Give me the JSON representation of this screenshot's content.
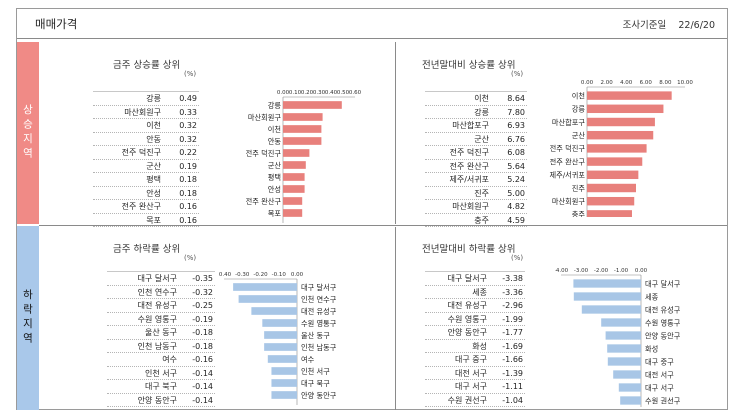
{
  "header": {
    "title": "매매가격",
    "date_label": "조사기준일",
    "date_value": "22/6/20"
  },
  "side": {
    "rise": "상승지역",
    "fall": "하락지역"
  },
  "panels": {
    "tl": {
      "title": "금주 상승률 상위",
      "unit": "(%)",
      "rows": [
        {
          "name": "강릉",
          "value": "0.49"
        },
        {
          "name": "마산회원구",
          "value": "0.33"
        },
        {
          "name": "이천",
          "value": "0.32"
        },
        {
          "name": "안동",
          "value": "0.32"
        },
        {
          "name": "전주 덕진구",
          "value": "0.22"
        },
        {
          "name": "군산",
          "value": "0.19"
        },
        {
          "name": "평택",
          "value": "0.18"
        },
        {
          "name": "안성",
          "value": "0.18"
        },
        {
          "name": "전주 완산구",
          "value": "0.16"
        },
        {
          "name": "목포",
          "value": "0.16"
        }
      ]
    },
    "tr": {
      "title": "전년말대비 상승률 상위",
      "unit": "(%)",
      "rows": [
        {
          "name": "이천",
          "value": "8.64"
        },
        {
          "name": "강릉",
          "value": "7.80"
        },
        {
          "name": "마산합포구",
          "value": "6.93"
        },
        {
          "name": "군산",
          "value": "6.76"
        },
        {
          "name": "전주 덕진구",
          "value": "6.08"
        },
        {
          "name": "전주 완산구",
          "value": "5.64"
        },
        {
          "name": "제주/서귀포",
          "value": "5.24"
        },
        {
          "name": "진주",
          "value": "5.00"
        },
        {
          "name": "마산회원구",
          "value": "4.82"
        },
        {
          "name": "충주",
          "value": "4.59"
        }
      ]
    },
    "bl": {
      "title": "금주 하락률 상위",
      "unit": "(%)",
      "rows": [
        {
          "name": "대구 달서구",
          "value": "-0.35"
        },
        {
          "name": "인천 연수구",
          "value": "-0.32"
        },
        {
          "name": "대전 유성구",
          "value": "-0.25"
        },
        {
          "name": "수원 영통구",
          "value": "-0.19"
        },
        {
          "name": "울산 동구",
          "value": "-0.18"
        },
        {
          "name": "인천 남동구",
          "value": "-0.18"
        },
        {
          "name": "여수",
          "value": "-0.16"
        },
        {
          "name": "인천 서구",
          "value": "-0.14"
        },
        {
          "name": "대구 북구",
          "value": "-0.14"
        },
        {
          "name": "안양 동안구",
          "value": "-0.14"
        }
      ]
    },
    "br": {
      "title": "전년말대비 하락률 상위",
      "unit": "(%)",
      "rows": [
        {
          "name": "대구 달서구",
          "value": "-3.38"
        },
        {
          "name": "세종",
          "value": "-3.36"
        },
        {
          "name": "대전 유성구",
          "value": "-2.96"
        },
        {
          "name": "수원 영통구",
          "value": "-1.99"
        },
        {
          "name": "안양 동안구",
          "value": "-1.77"
        },
        {
          "name": "화성",
          "value": "-1.69"
        },
        {
          "name": "대구 중구",
          "value": "-1.66"
        },
        {
          "name": "대전 서구",
          "value": "-1.39"
        },
        {
          "name": "대구 서구",
          "value": "-1.11"
        },
        {
          "name": "수원 권선구",
          "value": "-1.04"
        }
      ]
    }
  },
  "chart_data": [
    {
      "type": "bar",
      "orientation": "horizontal",
      "categories": [
        "강릉",
        "마산회원구",
        "이천",
        "안동",
        "전주 덕진구",
        "군산",
        "평택",
        "안성",
        "전주 완산구",
        "목포"
      ],
      "values": [
        0.49,
        0.33,
        0.32,
        0.32,
        0.22,
        0.19,
        0.18,
        0.18,
        0.16,
        0.16
      ],
      "xlim": [
        0,
        0.6
      ],
      "ticks": [
        "0.00",
        "0.10",
        "0.20",
        "0.30",
        "0.40",
        "0.50",
        "0.60"
      ],
      "bar_color": "#e8807c"
    },
    {
      "type": "bar",
      "orientation": "horizontal",
      "categories": [
        "이천",
        "강릉",
        "마산합포구",
        "군산",
        "전주 덕진구",
        "전주 완산구",
        "제주/서귀포",
        "진주",
        "마산회원구",
        "충주"
      ],
      "values": [
        8.64,
        7.8,
        6.93,
        6.76,
        6.08,
        5.64,
        5.24,
        5.0,
        4.82,
        4.59
      ],
      "xlim": [
        0,
        10
      ],
      "ticks": [
        "0.00",
        "2.00",
        "4.00",
        "6.00",
        "8.00",
        "10.00"
      ],
      "bar_color": "#e8807c"
    },
    {
      "type": "bar",
      "orientation": "horizontal",
      "categories": [
        "대구 달서구",
        "인천 연수구",
        "대전 유성구",
        "수원 영통구",
        "울산 동구",
        "인천 남동구",
        "여수",
        "인천 서구",
        "대구 북구",
        "안양 동안구"
      ],
      "values": [
        -0.35,
        -0.32,
        -0.25,
        -0.19,
        -0.18,
        -0.18,
        -0.16,
        -0.14,
        -0.14,
        -0.14
      ],
      "xlim": [
        -0.4,
        0
      ],
      "ticks": [
        "-0.40",
        "-0.30",
        "-0.20",
        "-0.10",
        "0.00"
      ],
      "bar_color": "#a8c6e6"
    },
    {
      "type": "bar",
      "orientation": "horizontal",
      "categories": [
        "대구 달서구",
        "세종",
        "대전 유성구",
        "수원 영통구",
        "안양 동안구",
        "화성",
        "대구 중구",
        "대전 서구",
        "대구 서구",
        "수원 권선구"
      ],
      "values": [
        -3.38,
        -3.36,
        -2.96,
        -1.99,
        -1.77,
        -1.69,
        -1.66,
        -1.39,
        -1.11,
        -1.04
      ],
      "xlim": [
        -4,
        0
      ],
      "ticks": [
        "-4.00",
        "-3.00",
        "-2.00",
        "-1.00",
        "0.00"
      ],
      "bar_color": "#a8c6e6"
    }
  ]
}
